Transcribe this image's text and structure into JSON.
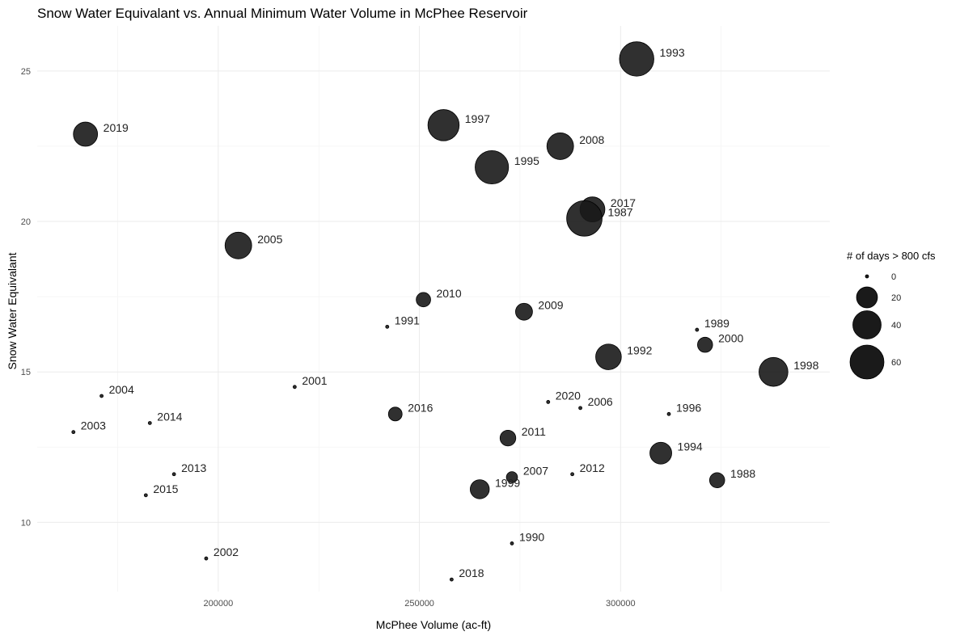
{
  "chart_data": {
    "type": "scatter",
    "title": "Snow Water Equivalant vs. Annual Minimum Water Volume in McPhee Reservoir",
    "xlabel": "McPhee Volume (ac-ft)",
    "ylabel": "Snow Water Equivalant",
    "xlim": [
      155000,
      352000
    ],
    "ylim": [
      7.7,
      26.5
    ],
    "x_ticks": [
      200000,
      250000,
      300000
    ],
    "x_tick_labels": [
      "200000",
      "250000",
      "300000"
    ],
    "y_ticks": [
      10,
      15,
      20,
      25
    ],
    "y_tick_labels": [
      "10",
      "15",
      "20",
      "25"
    ],
    "grid": true,
    "point_color": "#1a1a1a",
    "legend": {
      "title": "# of days > 800 cfs",
      "position": "right",
      "entries": [
        {
          "label": "0",
          "value": 0
        },
        {
          "label": "20",
          "value": 20
        },
        {
          "label": "40",
          "value": 40
        },
        {
          "label": "60",
          "value": 60
        }
      ]
    },
    "points": [
      {
        "label": "1993",
        "x": 304000,
        "y": 25.4,
        "size": 62
      },
      {
        "label": "2019",
        "x": 167000,
        "y": 22.9,
        "size": 28
      },
      {
        "label": "1997",
        "x": 256000,
        "y": 23.2,
        "size": 50
      },
      {
        "label": "2008",
        "x": 285000,
        "y": 22.5,
        "size": 35
      },
      {
        "label": "1995",
        "x": 268000,
        "y": 21.8,
        "size": 58
      },
      {
        "label": "2017",
        "x": 293000,
        "y": 20.4,
        "size": 30
      },
      {
        "label": "1987",
        "x": 291000,
        "y": 20.1,
        "size": 66
      },
      {
        "label": "2005",
        "x": 205000,
        "y": 19.2,
        "size": 35
      },
      {
        "label": "2010",
        "x": 251000,
        "y": 17.4,
        "size": 8
      },
      {
        "label": "2009",
        "x": 276000,
        "y": 17.0,
        "size": 12
      },
      {
        "label": "1991",
        "x": 242000,
        "y": 16.5,
        "size": 0
      },
      {
        "label": "1989",
        "x": 319000,
        "y": 16.4,
        "size": 0
      },
      {
        "label": "2000",
        "x": 321000,
        "y": 15.9,
        "size": 9
      },
      {
        "label": "1992",
        "x": 297000,
        "y": 15.5,
        "size": 32
      },
      {
        "label": "1998",
        "x": 338000,
        "y": 15.0,
        "size": 42
      },
      {
        "label": "2001",
        "x": 219000,
        "y": 14.5,
        "size": 0
      },
      {
        "label": "2004",
        "x": 171000,
        "y": 14.2,
        "size": 0
      },
      {
        "label": "2020",
        "x": 282000,
        "y": 14.0,
        "size": 0
      },
      {
        "label": "2006",
        "x": 290000,
        "y": 13.8,
        "size": 0
      },
      {
        "label": "2016",
        "x": 244000,
        "y": 13.6,
        "size": 7
      },
      {
        "label": "1996",
        "x": 312000,
        "y": 13.6,
        "size": 0
      },
      {
        "label": "2014",
        "x": 183000,
        "y": 13.3,
        "size": 0
      },
      {
        "label": "2003",
        "x": 164000,
        "y": 13.0,
        "size": 0
      },
      {
        "label": "2011",
        "x": 272000,
        "y": 12.8,
        "size": 10
      },
      {
        "label": "1994",
        "x": 310000,
        "y": 12.3,
        "size": 22
      },
      {
        "label": "2013",
        "x": 189000,
        "y": 11.6,
        "size": 0
      },
      {
        "label": "2012",
        "x": 288000,
        "y": 11.6,
        "size": 0
      },
      {
        "label": "2007",
        "x": 273000,
        "y": 11.5,
        "size": 4
      },
      {
        "label": "1988",
        "x": 324000,
        "y": 11.4,
        "size": 9
      },
      {
        "label": "1999",
        "x": 265000,
        "y": 11.1,
        "size": 16
      },
      {
        "label": "2015",
        "x": 182000,
        "y": 10.9,
        "size": 0
      },
      {
        "label": "1990",
        "x": 273000,
        "y": 9.3,
        "size": 0
      },
      {
        "label": "2002",
        "x": 197000,
        "y": 8.8,
        "size": 0
      },
      {
        "label": "2018",
        "x": 258000,
        "y": 8.1,
        "size": 0
      }
    ]
  }
}
